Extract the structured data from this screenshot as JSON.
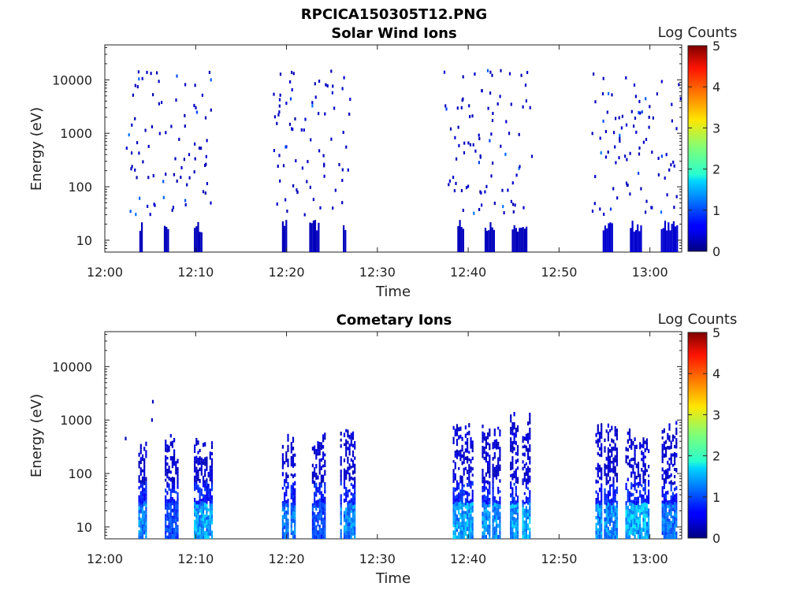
{
  "figure_title": "RPCICA150305T12.PNG",
  "chart_data": [
    {
      "type": "heatmap",
      "title": "Solar Wind Ions",
      "xlabel": "Time",
      "ylabel": "Energy (eV)",
      "x_ticks": [
        "12:00",
        "12:10",
        "12:20",
        "12:30",
        "12:40",
        "12:50",
        "13:00"
      ],
      "x_range_minutes": [
        0,
        63.5
      ],
      "y_scale": "log",
      "y_range": [
        6,
        45000
      ],
      "y_ticks": [
        "10",
        "100",
        "1000",
        "10000"
      ],
      "colorbar": {
        "label": "Log Counts",
        "range": [
          0,
          5
        ],
        "ticks": [
          "0",
          "1",
          "2",
          "3",
          "4",
          "5"
        ],
        "colormap": "jet"
      },
      "grid": false,
      "bursts": [
        {
          "start_min": 2.3,
          "end_min": 11.6,
          "low_energy_bands": [
            [
              3.8,
              4.1
            ],
            [
              6.5,
              6.9
            ],
            [
              9.8,
              10.6
            ]
          ],
          "log_counts_low_band": 0.1
        },
        {
          "start_min": 18.5,
          "end_min": 27.0,
          "low_energy_bands": [
            [
              19.5,
              20.0
            ],
            [
              22.5,
              23.5
            ],
            [
              26.2,
              26.5
            ]
          ],
          "log_counts_low_band": 0.1
        },
        {
          "start_min": 37.2,
          "end_min": 47.0,
          "low_energy_bands": [
            [
              38.8,
              39.5
            ],
            [
              41.8,
              42.8
            ],
            [
              44.8,
              46.5
            ]
          ],
          "log_counts_low_band": 0.1
        },
        {
          "start_min": 53.5,
          "end_min": 63.5,
          "low_energy_bands": [
            [
              54.8,
              55.8
            ],
            [
              57.8,
              59.0
            ],
            [
              61.2,
              63.0
            ]
          ],
          "log_counts_low_band": 0.2
        }
      ]
    },
    {
      "type": "heatmap",
      "title": "Cometary Ions",
      "xlabel": "Time",
      "ylabel": "Energy (eV)",
      "x_ticks": [
        "12:00",
        "12:10",
        "12:20",
        "12:30",
        "12:40",
        "12:50",
        "13:00"
      ],
      "x_range_minutes": [
        0,
        63.5
      ],
      "y_scale": "log",
      "y_range": [
        6,
        45000
      ],
      "y_ticks": [
        "10",
        "100",
        "1000",
        "10000"
      ],
      "colorbar": {
        "label": "Log Counts",
        "range": [
          0,
          5
        ],
        "ticks": [
          "0",
          "1",
          "2",
          "3",
          "4",
          "5"
        ],
        "colormap": "jet"
      },
      "grid": false,
      "bursts": [
        {
          "start_min": 3.5,
          "end_min": 4.6,
          "max_energy": 500,
          "peak_log_counts": 1.4
        },
        {
          "start_min": 6.6,
          "end_min": 8.0,
          "max_energy": 550,
          "peak_log_counts": 1.0
        },
        {
          "start_min": 9.8,
          "end_min": 11.8,
          "max_energy": 450,
          "peak_log_counts": 1.6
        },
        {
          "start_min": 19.5,
          "end_min": 21.0,
          "max_energy": 650,
          "peak_log_counts": 1.3
        },
        {
          "start_min": 22.8,
          "end_min": 24.3,
          "max_energy": 650,
          "peak_log_counts": 1.0
        },
        {
          "start_min": 25.9,
          "end_min": 27.5,
          "max_energy": 850,
          "peak_log_counts": 1.4
        },
        {
          "start_min": 38.3,
          "end_min": 40.5,
          "max_energy": 800,
          "peak_log_counts": 1.6
        },
        {
          "start_min": 41.5,
          "end_min": 43.4,
          "max_energy": 900,
          "peak_log_counts": 1.5
        },
        {
          "start_min": 44.6,
          "end_min": 46.7,
          "max_energy": 1200,
          "peak_log_counts": 1.6
        },
        {
          "start_min": 54.0,
          "end_min": 56.3,
          "max_energy": 900,
          "peak_log_counts": 1.5
        },
        {
          "start_min": 57.3,
          "end_min": 59.8,
          "max_energy": 650,
          "peak_log_counts": 1.7
        },
        {
          "start_min": 61.3,
          "end_min": 62.9,
          "max_energy": 850,
          "peak_log_counts": 1.3
        }
      ]
    }
  ],
  "colors": {
    "background": "#ffffff",
    "axis": "#222222",
    "low": "#00007f",
    "mid": "#0c5cff",
    "cyan": "#2ec7ff"
  }
}
